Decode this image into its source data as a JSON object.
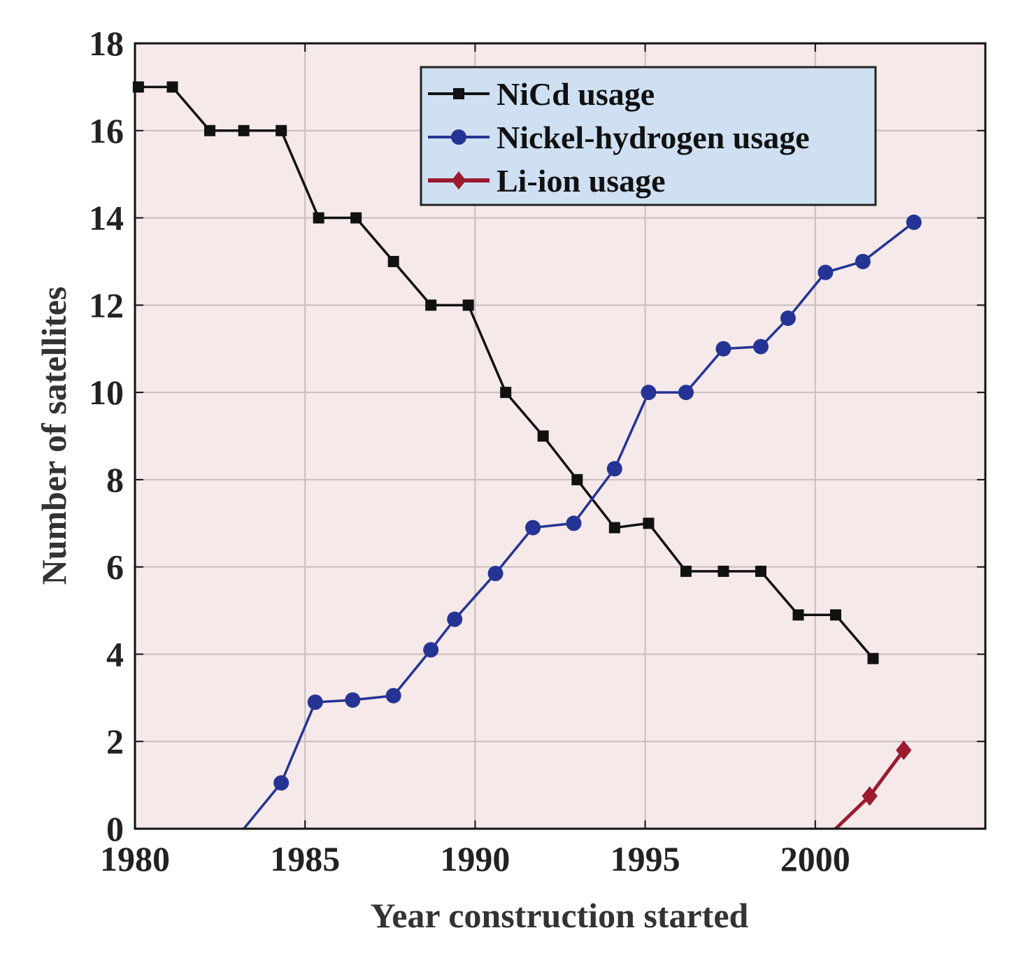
{
  "chart_data": {
    "type": "line",
    "xlabel": "Year construction started",
    "ylabel": "Number of satellites",
    "xlim": [
      1980,
      2005
    ],
    "ylim": [
      0,
      18
    ],
    "xticks": [
      1980,
      1985,
      1990,
      1995,
      2000
    ],
    "yticks": [
      0,
      2,
      4,
      6,
      8,
      10,
      12,
      14,
      16,
      18
    ],
    "grid": true,
    "legend_position": "top-right",
    "colors": {
      "plot_background": "#f5e9e9",
      "legend_background": "#cfe0f3",
      "grid": "#c9bdbd"
    },
    "series": [
      {
        "name": "NiCd usage",
        "color": "#111111",
        "marker": "square",
        "x": [
          1980.1,
          1981.1,
          1982.2,
          1983.2,
          1984.3,
          1985.4,
          1986.5,
          1987.6,
          1988.7,
          1989.8,
          1990.9,
          1992.0,
          1993.0,
          1994.1,
          1995.1,
          1996.2,
          1997.3,
          1998.4,
          1999.5,
          2000.6,
          2001.7
        ],
        "y": [
          17,
          17,
          16,
          16,
          16,
          14,
          14,
          13,
          12,
          12,
          10,
          9,
          8,
          6.9,
          7,
          5.9,
          5.9,
          5.9,
          4.9,
          4.9,
          3.9
        ]
      },
      {
        "name": "Nickel-hydrogen usage",
        "color": "#253494",
        "marker": "circle",
        "x": [
          1983.2,
          1984.3,
          1985.3,
          1986.4,
          1987.6,
          1988.7,
          1989.4,
          1990.6,
          1991.7,
          1992.9,
          1994.1,
          1995.1,
          1996.2,
          1997.3,
          1998.4,
          1999.2,
          2000.3,
          2001.4,
          2002.9
        ],
        "y": [
          0,
          1.05,
          2.9,
          2.95,
          3.05,
          4.1,
          4.8,
          5.85,
          6.9,
          7.0,
          8.25,
          10,
          10,
          11,
          11.05,
          11.7,
          12.75,
          13,
          13.9
        ],
        "markers_from_index": 1
      },
      {
        "name": "Li-ion usage",
        "color": "#9b1b30",
        "marker": "diamond",
        "x": [
          2000.6,
          2001.6,
          2002.6
        ],
        "y": [
          0,
          0.75,
          1.8
        ],
        "markers_from_index": 1
      }
    ]
  }
}
